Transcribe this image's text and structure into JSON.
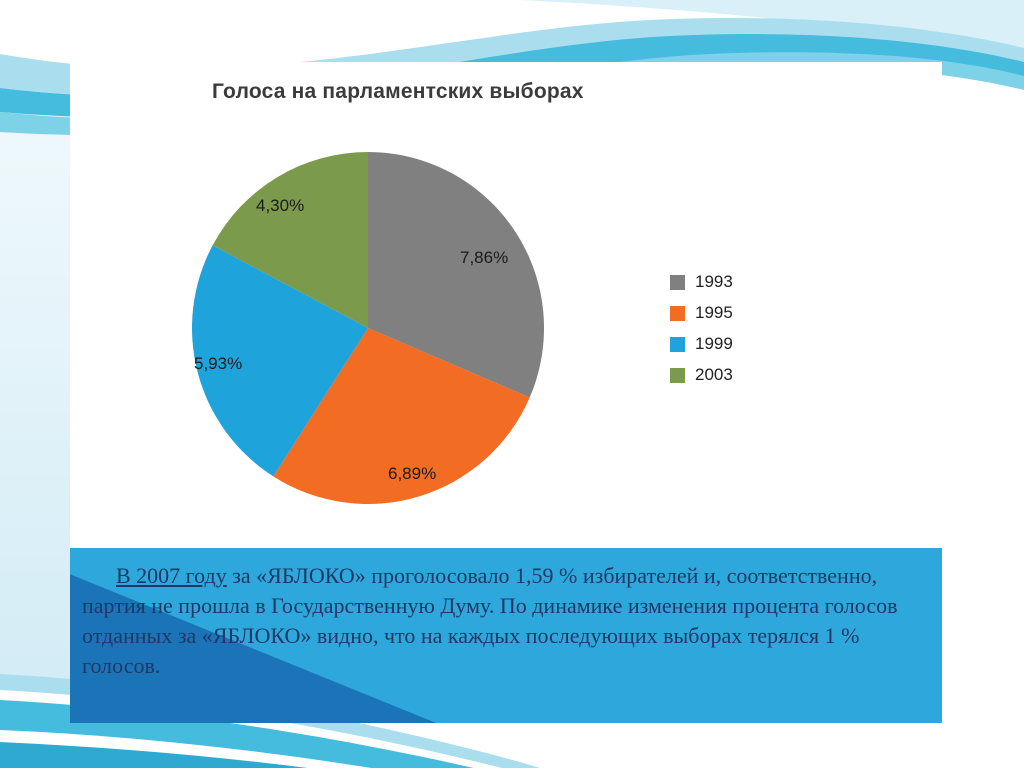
{
  "chart_data": {
    "type": "pie",
    "title": "Голоса на парламентских выборах",
    "categories": [
      "1993",
      "1995",
      "1999",
      "2003"
    ],
    "values": [
      7.86,
      6.89,
      5.93,
      4.3
    ],
    "labels": [
      "7,86%",
      "6,89%",
      "5,93%",
      "4,30%"
    ],
    "colors": [
      "#808080",
      "#f26c23",
      "#1fa3db",
      "#7c9a4b"
    ],
    "legend_position": "right",
    "start_angle_deg": 0,
    "direction": "clockwise",
    "units": "percent of voters"
  },
  "textbox": {
    "lead_underlined": "В 2007 году",
    "body": " за «ЯБЛОКО» проголосовало 1,59 % избирателей и, соответственно, партия не прошла в Государственную Думу. По динамике изменения процента голосов отданных за «ЯБЛОКО» видно, что на каждых последующих выборах терялся 1 % голосов.",
    "background_color": "#2ea7dc",
    "triangle_color": "#1b74b8",
    "text_color": "#1f3864"
  },
  "decoration": {
    "wave_light": "#aadeee",
    "wave_medium": "#45bcdd",
    "wave_deep": "#2fa9cf"
  }
}
